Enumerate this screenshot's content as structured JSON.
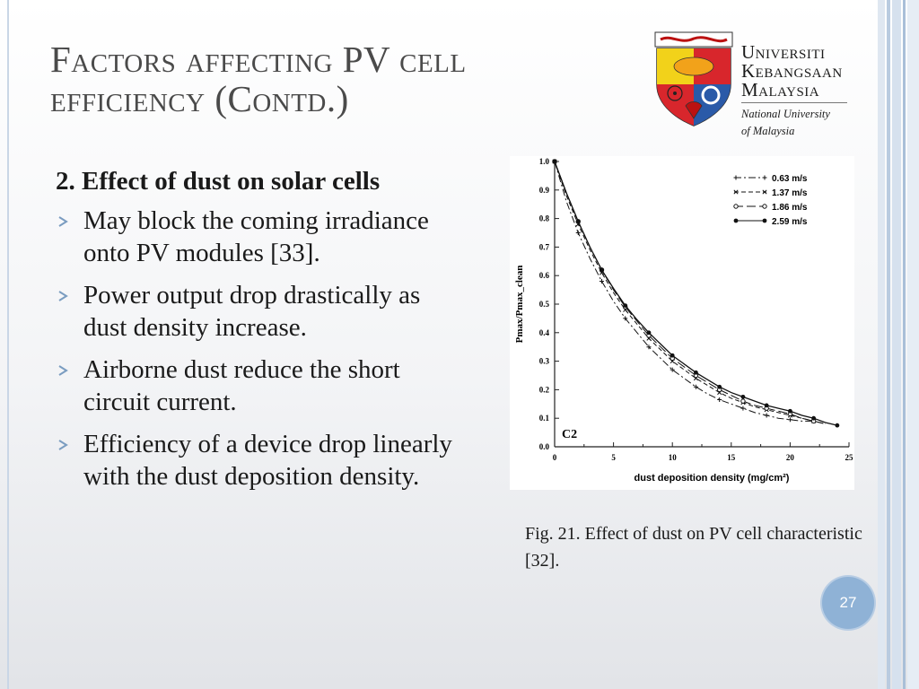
{
  "slide": {
    "title_line1": "Factors affecting PV cell",
    "title_line2": "efficiency (Contd.)",
    "page_number": "27"
  },
  "logo": {
    "line1": "Universiti",
    "line2": "Kebangsaan",
    "line3": "Malaysia",
    "sub1": "National University",
    "sub2": "of Malaysia"
  },
  "content": {
    "heading": "2. Effect of dust on solar cells",
    "bullets": [
      "May block the coming irradiance onto PV modules [33].",
      "Power output drop drastically as dust density increase.",
      "Airborne dust reduce the short circuit current.",
      "Efficiency of a device drop linearly with the dust deposition density."
    ]
  },
  "caption": "Fig. 21. Effect of dust on PV cell characteristic [32].",
  "chart_data": {
    "type": "line",
    "annotation": "C2",
    "xlabel": "dust deposition density (mg/cm²)",
    "ylabel": "Pmax/Pmax_clean",
    "xlim": [
      0,
      25
    ],
    "ylim": [
      0,
      1.0
    ],
    "xticks": [
      "0",
      "5",
      "10",
      "15",
      "20",
      "25"
    ],
    "yticks": [
      "0.0",
      "0.1",
      "0.2",
      "0.3",
      "0.4",
      "0.5",
      "0.6",
      "0.7",
      "0.8",
      "0.9",
      "1.0"
    ],
    "grid": false,
    "legend_position": "top-right",
    "series": [
      {
        "name": "0.63 m/s",
        "style": "dashdot",
        "marker": "plus",
        "x": [
          0,
          1,
          2,
          3,
          4,
          5,
          6,
          7,
          8,
          9,
          10,
          11,
          12,
          13,
          14,
          15,
          16,
          17,
          18,
          19,
          20,
          21,
          22
        ],
        "y": [
          1.0,
          0.86,
          0.75,
          0.66,
          0.58,
          0.51,
          0.45,
          0.4,
          0.35,
          0.31,
          0.27,
          0.24,
          0.21,
          0.185,
          0.165,
          0.15,
          0.135,
          0.12,
          0.11,
          0.1,
          0.095,
          0.09,
          0.09
        ]
      },
      {
        "name": "1.37 m/s",
        "style": "dashed",
        "marker": "x",
        "x": [
          0,
          1,
          2,
          3,
          4,
          5,
          6,
          7,
          8,
          9,
          10,
          11,
          12,
          13,
          14,
          15,
          16,
          17,
          18,
          19,
          20,
          21,
          22,
          23
        ],
        "y": [
          1.0,
          0.88,
          0.78,
          0.69,
          0.61,
          0.54,
          0.48,
          0.43,
          0.38,
          0.34,
          0.3,
          0.27,
          0.24,
          0.215,
          0.19,
          0.17,
          0.155,
          0.14,
          0.13,
          0.12,
          0.11,
          0.1,
          0.09,
          0.08
        ]
      },
      {
        "name": "1.86 m/s",
        "style": "longdash",
        "marker": "circle",
        "x": [
          0,
          1,
          2,
          3,
          4,
          5,
          6,
          7,
          8,
          9,
          10,
          11,
          12,
          13,
          14,
          15,
          16,
          17,
          18,
          19,
          20,
          21,
          22,
          23
        ],
        "y": [
          1.0,
          0.89,
          0.79,
          0.7,
          0.62,
          0.55,
          0.49,
          0.44,
          0.39,
          0.35,
          0.31,
          0.28,
          0.25,
          0.225,
          0.2,
          0.18,
          0.16,
          0.145,
          0.135,
          0.125,
          0.115,
          0.1,
          0.09,
          0.08
        ]
      },
      {
        "name": "2.59 m/s",
        "style": "solid",
        "marker": "dot",
        "x": [
          0,
          1,
          2,
          3,
          4,
          5,
          6,
          7,
          8,
          9,
          10,
          11,
          12,
          13,
          14,
          15,
          16,
          17,
          18,
          19,
          20,
          21,
          22,
          23,
          24
        ],
        "y": [
          1.0,
          0.89,
          0.79,
          0.7,
          0.62,
          0.555,
          0.495,
          0.445,
          0.4,
          0.36,
          0.32,
          0.29,
          0.26,
          0.235,
          0.21,
          0.19,
          0.175,
          0.16,
          0.145,
          0.135,
          0.125,
          0.11,
          0.1,
          0.085,
          0.075
        ]
      }
    ]
  }
}
